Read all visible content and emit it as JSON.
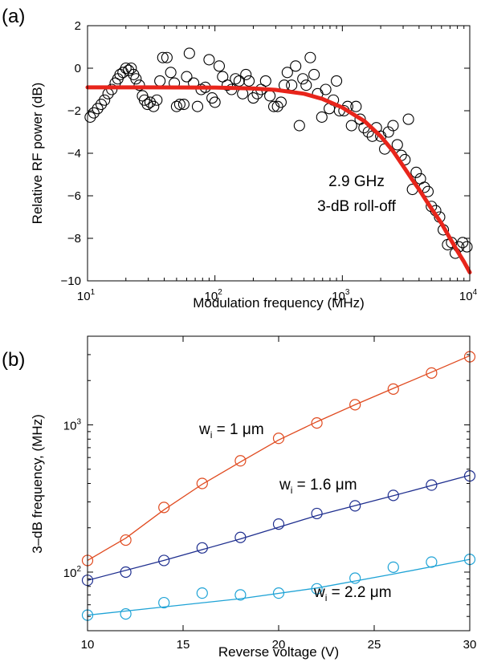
{
  "chart_data": [
    {
      "panel_label": "(a)",
      "type": "scatter",
      "xlabel": "Modulation frequency (MHz)",
      "ylabel": "Relative RF power (dB)",
      "xscale": "log",
      "xlim": [
        10,
        10000
      ],
      "ylim": [
        -10,
        2
      ],
      "x_ticks": [
        {
          "base": "10",
          "exp": "1"
        },
        {
          "base": "10",
          "exp": "2"
        },
        {
          "base": "10",
          "exp": "3"
        },
        {
          "base": "10",
          "exp": "4"
        }
      ],
      "y_ticks": [
        "2",
        "0",
        "−2",
        "−4",
        "−6",
        "−8",
        "−10"
      ],
      "annotation_line1": "2.9 GHz",
      "annotation_line2": "3-dB roll-off",
      "scatter_color": "#000000",
      "fit_color": "#e8251b",
      "scatter_points": [
        [
          10.5,
          -2.3
        ],
        [
          11.2,
          -2.1
        ],
        [
          12,
          -1.9
        ],
        [
          12.8,
          -1.7
        ],
        [
          13.6,
          -1.5
        ],
        [
          14.5,
          -1.2
        ],
        [
          15.5,
          -1.0
        ],
        [
          16.5,
          -0.7
        ],
        [
          17.3,
          -0.5
        ],
        [
          18,
          -0.3
        ],
        [
          19,
          -0.2
        ],
        [
          20,
          0.0
        ],
        [
          21,
          -0.1
        ],
        [
          22,
          0.0
        ],
        [
          23,
          -0.3
        ],
        [
          24,
          -0.5
        ],
        [
          25.5,
          -0.8
        ],
        [
          27,
          -1.3
        ],
        [
          28,
          -1.5
        ],
        [
          29.5,
          -1.7
        ],
        [
          31,
          -1.6
        ],
        [
          33,
          -1.8
        ],
        [
          35,
          -1.5
        ],
        [
          37,
          -0.6
        ],
        [
          39,
          0.5
        ],
        [
          42,
          0.5
        ],
        [
          45,
          -0.2
        ],
        [
          48,
          -0.7
        ],
        [
          50,
          -1.8
        ],
        [
          53,
          -1.7
        ],
        [
          57,
          -1.7
        ],
        [
          60,
          -0.4
        ],
        [
          63,
          0.7
        ],
        [
          68,
          -0.7
        ],
        [
          73,
          -1.8
        ],
        [
          78,
          -1.0
        ],
        [
          84,
          -0.9
        ],
        [
          90,
          0.4
        ],
        [
          95,
          -1.4
        ],
        [
          100,
          -1.6
        ],
        [
          108,
          0.1
        ],
        [
          115,
          -0.4
        ],
        [
          125,
          -0.8
        ],
        [
          135,
          -1.0
        ],
        [
          145,
          -0.5
        ],
        [
          155,
          -0.6
        ],
        [
          165,
          -1.2
        ],
        [
          175,
          -0.3
        ],
        [
          185,
          -0.6
        ],
        [
          200,
          -1.4
        ],
        [
          215,
          -1.2
        ],
        [
          230,
          -1.0
        ],
        [
          250,
          -0.6
        ],
        [
          270,
          -1.3
        ],
        [
          290,
          -1.8
        ],
        [
          310,
          -1.8
        ],
        [
          330,
          -1.6
        ],
        [
          350,
          -0.8
        ],
        [
          370,
          -0.2
        ],
        [
          400,
          -0.8
        ],
        [
          430,
          0.1
        ],
        [
          460,
          -2.7
        ],
        [
          490,
          -0.5
        ],
        [
          520,
          -0.8
        ],
        [
          560,
          0.5
        ],
        [
          600,
          -0.3
        ],
        [
          640,
          -1.2
        ],
        [
          690,
          -2.3
        ],
        [
          740,
          -1.0
        ],
        [
          790,
          -1.9
        ],
        [
          850,
          -1.5
        ],
        [
          900,
          -0.6
        ],
        [
          950,
          -2.0
        ],
        [
          1030,
          -2.0
        ],
        [
          1100,
          -1.8
        ],
        [
          1180,
          -2.7
        ],
        [
          1280,
          -1.8
        ],
        [
          1380,
          -2.4
        ],
        [
          1480,
          -2.8
        ],
        [
          1600,
          -3.0
        ],
        [
          1720,
          -3.2
        ],
        [
          1850,
          -2.8
        ],
        [
          2000,
          -3.2
        ],
        [
          2150,
          -3.8
        ],
        [
          2300,
          -3.0
        ],
        [
          2500,
          -2.7
        ],
        [
          2700,
          -3.6
        ],
        [
          2900,
          -4.1
        ],
        [
          3100,
          -4.3
        ],
        [
          3300,
          -2.4
        ],
        [
          3550,
          -5.7
        ],
        [
          3800,
          -4.9
        ],
        [
          4100,
          -5.2
        ],
        [
          4400,
          -5.6
        ],
        [
          4700,
          -5.8
        ],
        [
          5000,
          -6.5
        ],
        [
          5400,
          -6.7
        ],
        [
          5800,
          -7.0
        ],
        [
          6200,
          -7.6
        ],
        [
          6700,
          -8.3
        ],
        [
          7200,
          -8.2
        ],
        [
          7700,
          -8.7
        ],
        [
          8200,
          -8.4
        ],
        [
          8800,
          -8.2
        ],
        [
          9500,
          -8.4
        ]
      ],
      "fit_points": [
        [
          10,
          -0.9
        ],
        [
          30,
          -0.9
        ],
        [
          100,
          -0.91
        ],
        [
          200,
          -0.95
        ],
        [
          300,
          -1.02
        ],
        [
          500,
          -1.2
        ],
        [
          700,
          -1.45
        ],
        [
          1000,
          -1.85
        ],
        [
          1500,
          -2.5
        ],
        [
          2000,
          -3.2
        ],
        [
          2500,
          -3.9
        ],
        [
          3000,
          -4.6
        ],
        [
          3500,
          -5.2
        ],
        [
          4000,
          -5.7
        ],
        [
          5000,
          -6.6
        ],
        [
          6000,
          -7.3
        ],
        [
          7000,
          -8.0
        ],
        [
          8000,
          -8.6
        ],
        [
          9000,
          -9.1
        ],
        [
          10000,
          -9.6
        ]
      ]
    },
    {
      "panel_label": "(b)",
      "type": "line",
      "xlabel": "Reverse voltage (V)",
      "ylabel": "3–dB frequency, (MHz)",
      "yscale": "log",
      "xlim": [
        10,
        30
      ],
      "ylim": [
        40,
        4000
      ],
      "x_ticks": [
        "10",
        "15",
        "20",
        "25",
        "30"
      ],
      "y_ticks": [
        {
          "base": "10",
          "exp": "2",
          "value": 100
        },
        {
          "base": "10",
          "exp": "3",
          "value": 1000
        }
      ],
      "x": [
        10,
        12,
        14,
        16,
        18,
        20,
        22,
        24,
        26,
        28,
        30
      ],
      "series": [
        {
          "label_prefix": "w",
          "label_sub": "i",
          "label_suffix": " = 1 μm",
          "color": "#e04a1f",
          "markers": [
            120,
            165,
            275,
            400,
            570,
            810,
            1030,
            1370,
            1750,
            2250,
            2900
          ],
          "fit": [
            [
              10,
              120
            ],
            [
              12,
              170
            ],
            [
              14,
              265
            ],
            [
              16,
              395
            ],
            [
              18,
              560
            ],
            [
              20,
              790
            ],
            [
              22,
              1050
            ],
            [
              24,
              1370
            ],
            [
              26,
              1770
            ],
            [
              28,
              2280
            ],
            [
              30,
              2950
            ]
          ]
        },
        {
          "label_prefix": "w",
          "label_sub": "i",
          "label_suffix": " = 1.6 μm",
          "color": "#1f2f8f",
          "markers": [
            88,
            100,
            120,
            146,
            172,
            212,
            250,
            282,
            332,
            390,
            450
          ],
          "fit": [
            [
              10,
              88
            ],
            [
              14,
              120
            ],
            [
              18,
              168
            ],
            [
              22,
              242
            ],
            [
              26,
              330
            ],
            [
              30,
              455
            ]
          ]
        },
        {
          "label_prefix": "w",
          "label_sub": "i",
          "label_suffix": " = 2.2 μm",
          "color": "#1fa3d6",
          "markers": [
            51,
            52,
            62,
            72,
            70,
            72,
            77,
            91,
            108,
            117,
            122
          ],
          "fit": [
            [
              10,
              51
            ],
            [
              14,
              58
            ],
            [
              18,
              66
            ],
            [
              22,
              78
            ],
            [
              26,
              97
            ],
            [
              30,
              122
            ]
          ]
        }
      ]
    }
  ]
}
